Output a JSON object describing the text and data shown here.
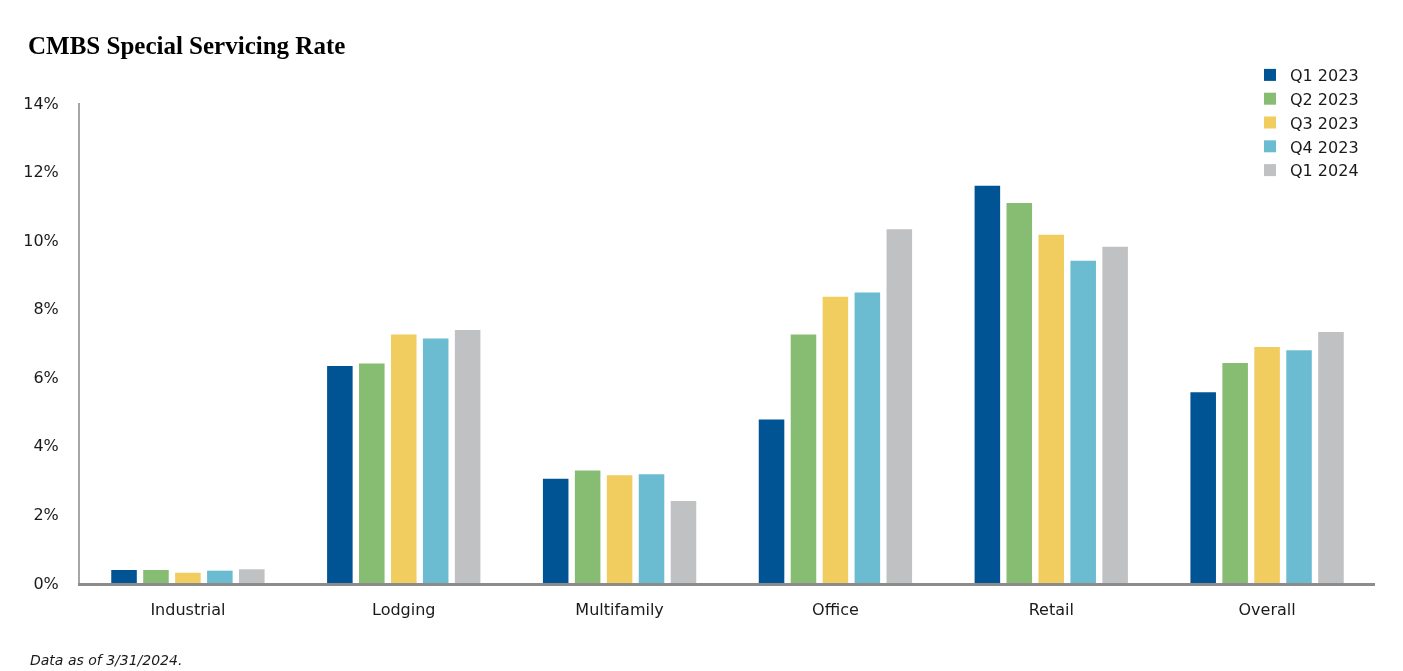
{
  "chart_data": {
    "type": "bar",
    "title": "CMBS Special Servicing Rate",
    "categories": [
      "Industrial",
      "Lodging",
      "Multifamily",
      "Office",
      "Retail",
      "Overall"
    ],
    "series": [
      {
        "name": "Q1 2023",
        "color": "#005493",
        "values": [
          0.38,
          6.33,
          3.04,
          4.77,
          11.59,
          5.56
        ]
      },
      {
        "name": "Q2 2023",
        "color": "#87bd72",
        "values": [
          0.38,
          6.4,
          3.28,
          7.25,
          11.08,
          6.42
        ]
      },
      {
        "name": "Q3 2023",
        "color": "#f1cc5f",
        "values": [
          0.3,
          7.25,
          3.14,
          8.35,
          10.16,
          6.88
        ]
      },
      {
        "name": "Q4 2023",
        "color": "#6cbcd1",
        "values": [
          0.36,
          7.13,
          3.17,
          8.47,
          9.4,
          6.79
        ]
      },
      {
        "name": "Q1 2024",
        "color": "#c0c1c3",
        "values": [
          0.4,
          7.38,
          2.39,
          10.32,
          9.81,
          7.32
        ]
      }
    ],
    "ylim": [
      0,
      14
    ],
    "yticks": [
      {
        "value": 0,
        "label": "0%"
      },
      {
        "value": 2,
        "label": "2%"
      },
      {
        "value": 4,
        "label": "4%"
      },
      {
        "value": 6,
        "label": "6%"
      },
      {
        "value": 8,
        "label": "8%"
      },
      {
        "value": 10,
        "label": "10%"
      },
      {
        "value": 12,
        "label": "12%"
      },
      {
        "value": 14,
        "label": "14%"
      }
    ],
    "legend": "top right",
    "annotations": [
      "Data as of 3/31/2024."
    ]
  }
}
